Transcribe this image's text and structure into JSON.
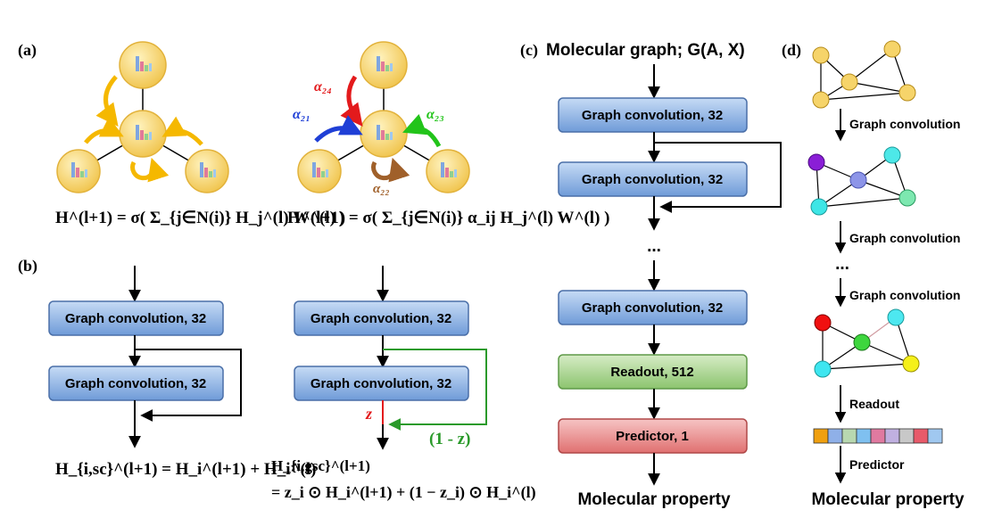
{
  "panels": {
    "a": "(a)",
    "b": "(b)",
    "c": "(c)",
    "d": "(d)"
  },
  "panel_a": {
    "alpha_24": "α₂₄",
    "alpha_21": "α₂₁",
    "alpha_23": "α₂₃",
    "alpha_22": "α₂₂",
    "formula_left": "H^(l+1) = σ( Σ_{j∈N(i)} H_j^(l) W^(l) )",
    "formula_right": "H^(l+1) = σ( Σ_{j∈N(i)} α_ij H_j^(l) W^(l) )"
  },
  "panel_b": {
    "gc_box": "Graph convolution, 32",
    "z_label": "z",
    "one_minus_z": "(1 - z)",
    "formula_sc": "H_{i,sc}^(l+1) = H_i^(l+1) + H_i^(l)",
    "formula_gsc_head": "H_{i,gsc}^(l+1)",
    "formula_gsc_body": "= z_i ⊙ H_i^(l+1) + (1 − z_i) ⊙ H_i^(l)"
  },
  "panel_c": {
    "title": "Molecular graph; G(A, X)",
    "gc_box": "Graph convolution, 32",
    "ellipsis": "...",
    "readout": "Readout, 512",
    "predictor": "Predictor, 1",
    "output": "Molecular property"
  },
  "panel_d": {
    "step1": "Graph convolution",
    "step2": "Graph convolution",
    "ellipsis": "...",
    "step3": "Graph convolution",
    "readout": "Readout",
    "predictor": "Predictor",
    "output": "Molecular property"
  },
  "colors": {
    "gc_box": "#8db3e2",
    "readout_box": "#a9d08e",
    "predictor_box": "#e88a8a",
    "node": "#f6d46a",
    "arrow_yellow": "#f5b800",
    "alpha_red": "#e31a1c",
    "alpha_blue": "#1f3fd6",
    "alpha_green": "#22c41a",
    "alpha_brown": "#a0602a",
    "gate_red": "#e31a1c",
    "gate_green": "#2b9a2b"
  }
}
